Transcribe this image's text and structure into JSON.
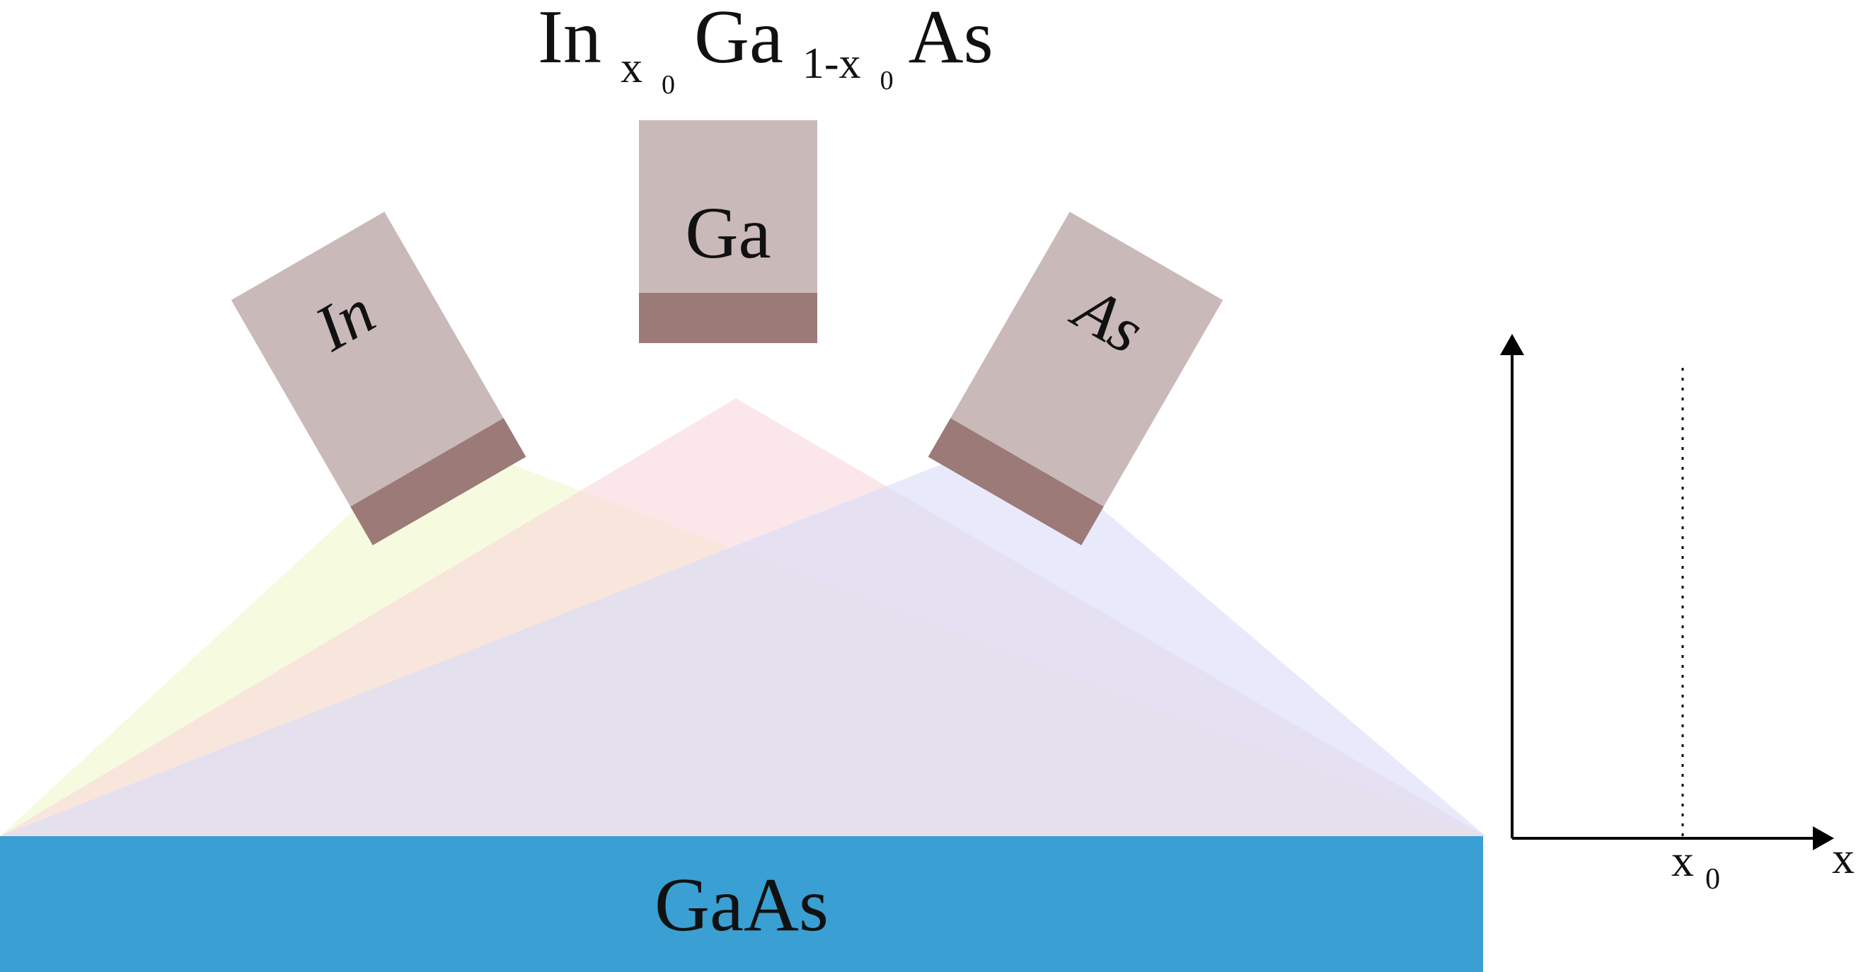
{
  "formula": {
    "main1": "In",
    "sub1": "x",
    "sub1b": "0",
    "main2": "Ga",
    "sub2": "1-x",
    "sub2b": "0",
    "main3": "As"
  },
  "sources": {
    "in_label": "In",
    "ga_label": "Ga",
    "as_label": "As"
  },
  "substrate": {
    "label": "GaAs"
  },
  "inset": {
    "x_axis_label": "x",
    "tick_main": "x",
    "tick_sub": "0"
  },
  "colors": {
    "source_body": "#cab9b9",
    "source_base": "#9b7a78",
    "substrate": "#3a9fd2",
    "beam_in": "#f2f9d4",
    "beam_ga": "#f8d9db",
    "beam_as": "#d8dafa"
  }
}
